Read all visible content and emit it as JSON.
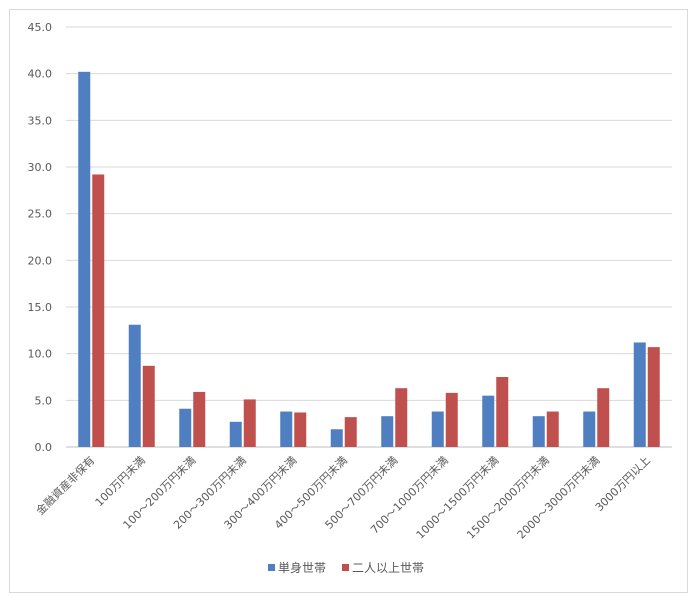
{
  "chart_data": {
    "type": "bar",
    "title": "",
    "xlabel": "",
    "ylabel": "",
    "ylim": [
      0,
      45
    ],
    "yticks": [
      "0.0",
      "5.0",
      "10.0",
      "15.0",
      "20.0",
      "25.0",
      "30.0",
      "35.0",
      "40.0",
      "45.0"
    ],
    "grid": true,
    "legend_position": "bottom",
    "categories": [
      "金融資産非保有",
      "100万円未満",
      "100～200万円未満",
      "200～300万円未満",
      "300～400万円未満",
      "400～500万円未満",
      "500～700万円未満",
      "700～1000万円未満",
      "1000～1500万円未満",
      "1500～2000万円未満",
      "2000～3000万円未満",
      "3000万円以上"
    ],
    "series": [
      {
        "name": "単身世帯",
        "color": "#4f7fc0",
        "values": [
          40.2,
          13.1,
          4.1,
          2.7,
          3.8,
          1.9,
          3.3,
          3.8,
          5.5,
          3.3,
          3.8,
          11.2
        ]
      },
      {
        "name": "二人以上世帯",
        "color": "#c0504d",
        "values": [
          29.2,
          8.7,
          5.9,
          5.1,
          3.7,
          3.2,
          6.3,
          5.8,
          7.5,
          3.8,
          6.3,
          10.7
        ]
      }
    ]
  }
}
